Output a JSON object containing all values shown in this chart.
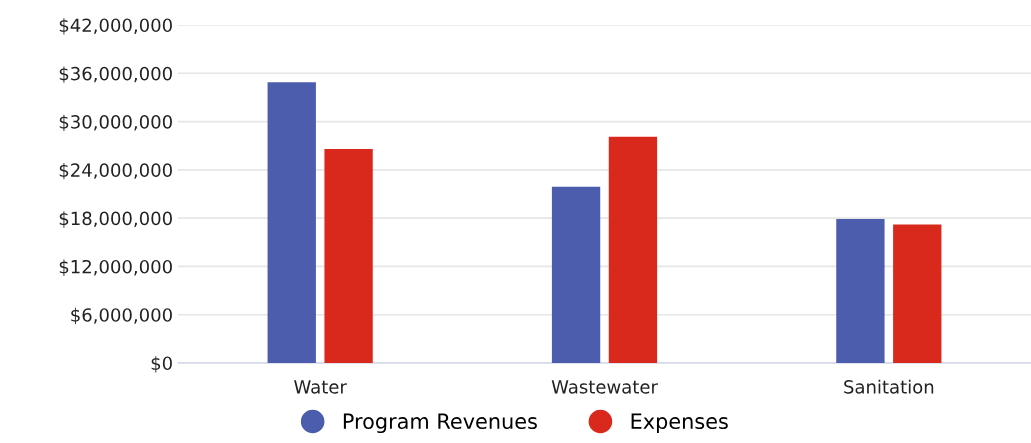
{
  "chart_data": {
    "type": "bar",
    "categories": [
      "Water",
      "Wastewater",
      "Sanitation"
    ],
    "series": [
      {
        "name": "Program Revenues",
        "color": "#4b5dac",
        "values": [
          34900000,
          21900000,
          17900000
        ]
      },
      {
        "name": "Expenses",
        "color": "#d9291d",
        "values": [
          26600000,
          28100000,
          17200000
        ]
      }
    ],
    "ylim": [
      0,
      42000000
    ],
    "yticks": [
      {
        "value": 0,
        "label": "$0"
      },
      {
        "value": 6000000,
        "label": "$6,000,000"
      },
      {
        "value": 12000000,
        "label": "$12,000,000"
      },
      {
        "value": 18000000,
        "label": "$18,000,000"
      },
      {
        "value": 24000000,
        "label": "$24,000,000"
      },
      {
        "value": 30000000,
        "label": "$30,000,000"
      },
      {
        "value": 36000000,
        "label": "$36,000,000"
      },
      {
        "value": 42000000,
        "label": "$42,000,000"
      }
    ],
    "grid": "y",
    "legend": "bottom"
  }
}
